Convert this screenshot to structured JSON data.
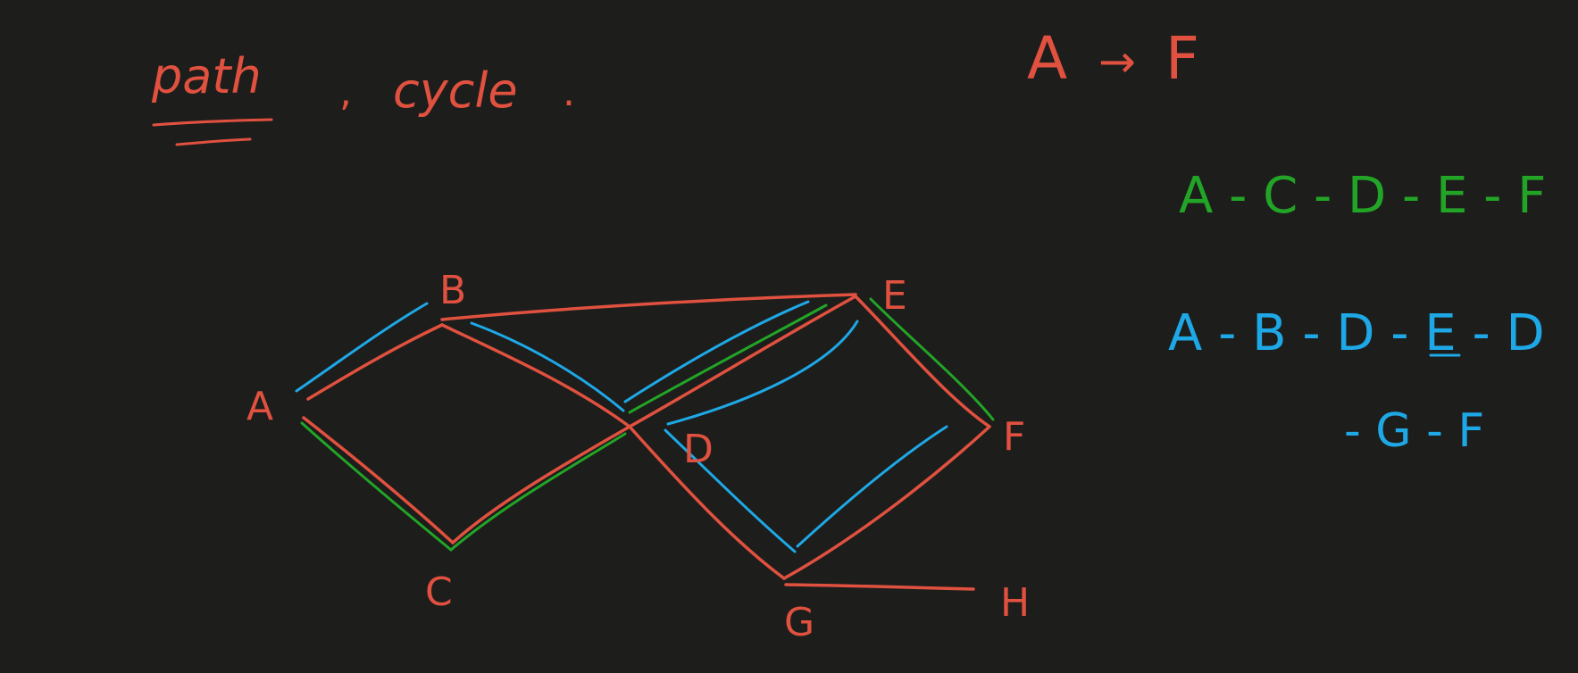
{
  "colors": {
    "background": "#1d1d1c",
    "red": "#e0513f",
    "green": "#22a526",
    "blue": "#1ea8e6"
  },
  "heading": {
    "path_word": "path",
    "separator": ",",
    "cycle_word": "cycle",
    "period": "."
  },
  "question": {
    "from": "A",
    "arrow": "→",
    "to": "F"
  },
  "nodes": {
    "A": "A",
    "B": "B",
    "C": "C",
    "D": "D",
    "E": "E",
    "F": "F",
    "G": "G",
    "H": "H"
  },
  "green_path": {
    "text": "A - C - D - E - F"
  },
  "blue_path": {
    "line1": "A - B - D - E - D",
    "line2": "- G - F"
  }
}
